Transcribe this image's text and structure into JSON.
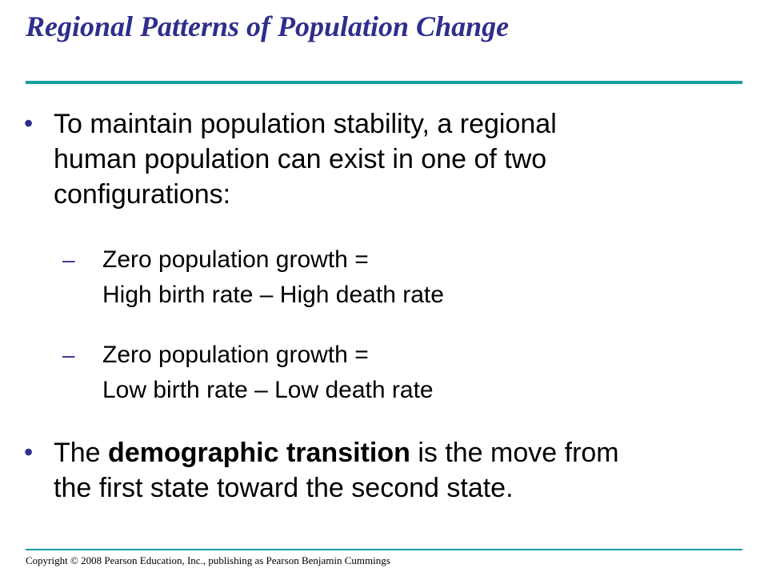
{
  "slide": {
    "title": "Regional Patterns of Population Change",
    "bullet_glyph": "•",
    "dash_glyph": "–",
    "bullet1": {
      "lines": [
        "To maintain population stability, a regional",
        "human population can exist in one of two",
        "configurations:"
      ]
    },
    "sub1": {
      "lines": [
        "Zero population growth =",
        "High birth rate – High death rate"
      ]
    },
    "sub2": {
      "lines": [
        "Zero population growth =",
        "Low birth rate – Low death rate"
      ]
    },
    "bullet2": {
      "pre": "The ",
      "bold": "demographic transition",
      "post": " is the move from",
      "line2": "the first state toward the second state."
    },
    "copyright": "Copyright © 2008 Pearson Education, Inc., publishing as Pearson Benjamin Cummings"
  },
  "colors": {
    "title": "#2e2e8c",
    "rule": "#1c9c9c",
    "bullet": "#2e2e8c",
    "text": "#000000"
  }
}
